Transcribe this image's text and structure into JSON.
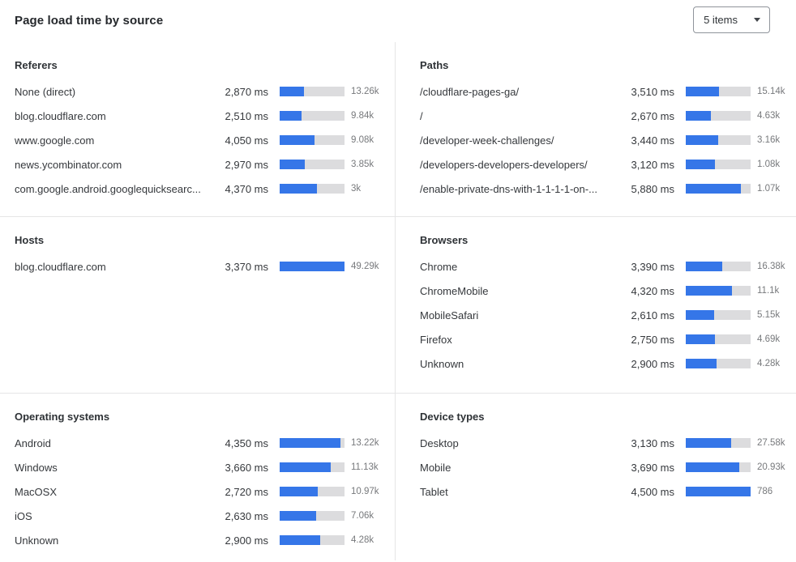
{
  "ui": {
    "title": "Page load time by source",
    "items_dropdown": {
      "value": "5 items"
    }
  },
  "colors": {
    "bar_fill": "#3576e8",
    "bar_track": "#dcdcde",
    "divider": "#e5e5e6"
  },
  "chart_data": [
    {
      "type": "bar",
      "title": "Referers",
      "categories": [
        "None (direct)",
        "blog.cloudflare.com",
        "www.google.com",
        "news.ycombinator.com",
        "com.google.android.googlequicksearc..."
      ],
      "values_ms": [
        2870,
        2510,
        4050,
        2970,
        4370
      ],
      "values_ms_text": [
        "2,870 ms",
        "2,510 ms",
        "4,050 ms",
        "2,970 ms",
        "4,370 ms"
      ],
      "counts": [
        "13.26k",
        "9.84k",
        "9.08k",
        "3.85k",
        "3k"
      ],
      "xlabel": "ms",
      "xmax_ms": 7550
    },
    {
      "type": "bar",
      "title": "Paths",
      "categories": [
        "/cloudflare-pages-ga/",
        "/",
        "/developer-week-challenges/",
        "/developers-developers-developers/",
        "/enable-private-dns-with-1-1-1-1-on-..."
      ],
      "values_ms": [
        3510,
        2670,
        3440,
        3120,
        5880
      ],
      "values_ms_text": [
        "3,510 ms",
        "2,670 ms",
        "3,440 ms",
        "3,120 ms",
        "5,880 ms"
      ],
      "counts": [
        "15.14k",
        "4.63k",
        "3.16k",
        "1.08k",
        "1.07k"
      ],
      "xlabel": "ms",
      "xmax_ms": 6900
    },
    {
      "type": "bar",
      "title": "Hosts",
      "categories": [
        "blog.cloudflare.com"
      ],
      "values_ms": [
        3370
      ],
      "values_ms_text": [
        "3,370 ms"
      ],
      "counts": [
        "49.29k"
      ],
      "xlabel": "ms",
      "xmax_ms": 3370
    },
    {
      "type": "bar",
      "title": "Browsers",
      "categories": [
        "Chrome",
        "ChromeMobile",
        "MobileSafari",
        "Firefox",
        "Unknown"
      ],
      "values_ms": [
        3390,
        4320,
        2610,
        2750,
        2900
      ],
      "values_ms_text": [
        "3,390 ms",
        "4,320 ms",
        "2,610 ms",
        "2,750 ms",
        "2,900 ms"
      ],
      "counts": [
        "16.38k",
        "11.1k",
        "5.15k",
        "4.69k",
        "4.28k"
      ],
      "xlabel": "ms",
      "xmax_ms": 6030
    },
    {
      "type": "bar",
      "title": "Operating systems",
      "categories": [
        "Android",
        "Windows",
        "MacOSX",
        "iOS",
        "Unknown"
      ],
      "values_ms": [
        4350,
        3660,
        2720,
        2630,
        2900
      ],
      "values_ms_text": [
        "4,350 ms",
        "3,660 ms",
        "2,720 ms",
        "2,630 ms",
        "2,900 ms"
      ],
      "counts": [
        "13.22k",
        "11.13k",
        "10.97k",
        "7.06k",
        "4.28k"
      ],
      "xlabel": "ms",
      "xmax_ms": 4650
    },
    {
      "type": "bar",
      "title": "Device types",
      "categories": [
        "Desktop",
        "Mobile",
        "Tablet"
      ],
      "values_ms": [
        3130,
        3690,
        4500
      ],
      "values_ms_text": [
        "3,130 ms",
        "3,690 ms",
        "4,500 ms"
      ],
      "counts": [
        "27.58k",
        "20.93k",
        "786"
      ],
      "xlabel": "ms",
      "xmax_ms": 4500
    }
  ]
}
